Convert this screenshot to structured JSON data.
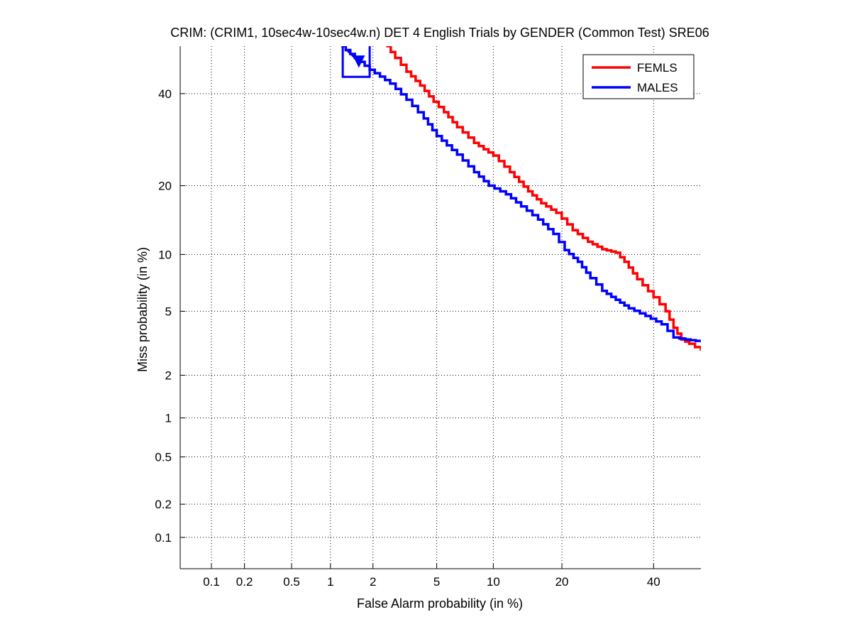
{
  "chart_data": {
    "type": "line",
    "title": "CRIM: (CRIM1, 10sec4w-10sec4w.n) DET 4 English Trials by GENDER (Common Test) SRE06",
    "xlabel": "False Alarm probability (in %)",
    "ylabel": "Miss probability (in %)",
    "x_scale": "probit",
    "y_scale": "probit",
    "xlim": [
      0.05,
      52
    ],
    "ylim": [
      0.05,
      52
    ],
    "x_ticks": [
      0.1,
      0.2,
      0.5,
      1,
      2,
      5,
      10,
      20,
      40
    ],
    "x_tick_labels": [
      "0.1",
      "0.2",
      "0.5",
      "1",
      "2",
      "5",
      "10",
      "20",
      "40"
    ],
    "y_ticks": [
      0.1,
      0.2,
      0.5,
      1,
      2,
      5,
      10,
      20,
      40
    ],
    "y_tick_labels": [
      "0.1",
      "0.2",
      "0.5",
      "1",
      "2",
      "5",
      "10",
      "20",
      "40"
    ],
    "grid": true,
    "legend_position": "top-right",
    "series": [
      {
        "name": "FEMLS",
        "color": "#ff0000",
        "points": [
          [
            2.45,
            52
          ],
          [
            2.8,
            49
          ],
          [
            3.3,
            45.5
          ],
          [
            4.0,
            42
          ],
          [
            4.8,
            38
          ],
          [
            5.5,
            35.5
          ],
          [
            6.5,
            32
          ],
          [
            8.0,
            28.5
          ],
          [
            10.0,
            25.8
          ],
          [
            12.0,
            22.5
          ],
          [
            14.5,
            19
          ],
          [
            16.5,
            17
          ],
          [
            19.0,
            15.5
          ],
          [
            22.0,
            13
          ],
          [
            25.0,
            11.5
          ],
          [
            28.0,
            10.6
          ],
          [
            31.0,
            10.2
          ],
          [
            33.0,
            9.2
          ],
          [
            36.0,
            7.5
          ],
          [
            40.0,
            6.0
          ],
          [
            43.0,
            5.0
          ],
          [
            45.0,
            4.0
          ],
          [
            47.0,
            3.4
          ],
          [
            49.0,
            3.2
          ],
          [
            52.0,
            2.9
          ]
        ]
      },
      {
        "name": "MALES",
        "color": "#0000ff",
        "points": [
          [
            1.2,
            52
          ],
          [
            1.5,
            49
          ],
          [
            1.9,
            46
          ],
          [
            2.6,
            42.5
          ],
          [
            3.3,
            38.5
          ],
          [
            4.2,
            34
          ],
          [
            5.0,
            30
          ],
          [
            6.5,
            26
          ],
          [
            8.0,
            22.5
          ],
          [
            9.5,
            20
          ],
          [
            11.5,
            18.5
          ],
          [
            13.5,
            16.5
          ],
          [
            16.0,
            14.5
          ],
          [
            18.5,
            12.5
          ],
          [
            20.5,
            10.5
          ],
          [
            23.0,
            9.2
          ],
          [
            25.5,
            7.6
          ],
          [
            28.0,
            6.5
          ],
          [
            31.0,
            5.8
          ],
          [
            34.0,
            5.2
          ],
          [
            38.0,
            4.7
          ],
          [
            42.0,
            4.2
          ],
          [
            45.0,
            3.5
          ],
          [
            48.0,
            3.4
          ],
          [
            52.0,
            3.3
          ]
        ]
      }
    ],
    "annotations": [
      {
        "series": "MALES",
        "marker": "square-with-triangle",
        "box_x": [
          1.23,
          1.9
        ],
        "box_y": [
          44.2,
          52
        ],
        "triangle_point": [
          1.6,
          48
        ]
      }
    ]
  }
}
